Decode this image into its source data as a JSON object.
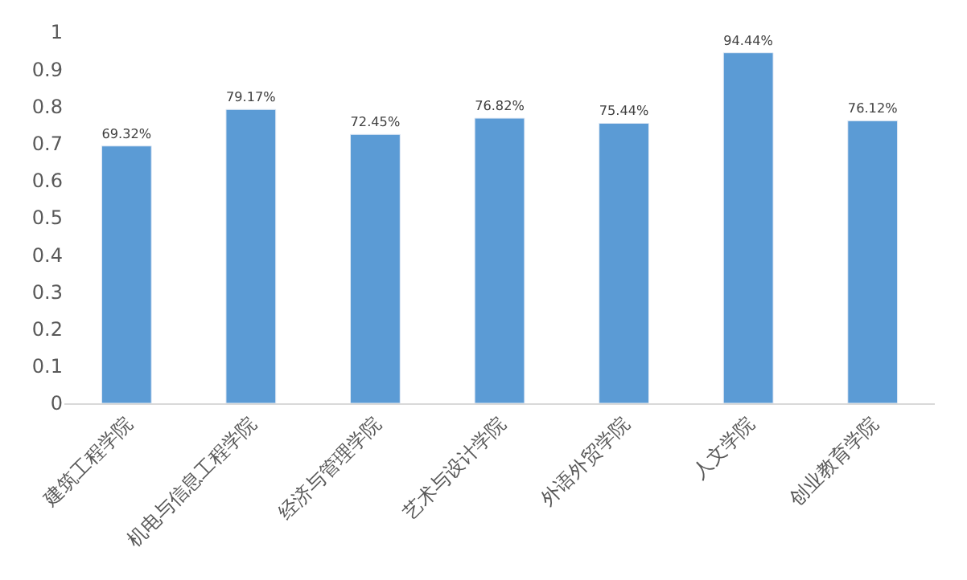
{
  "chart_data": {
    "type": "bar",
    "categories": [
      "建筑工程学院",
      "机电与信息工程学院",
      "经济与管理学院",
      "艺术与设计学院",
      "外语外贸学院",
      "人文学院",
      "创业教育学院"
    ],
    "values": [
      0.6932,
      0.7917,
      0.7245,
      0.7682,
      0.7544,
      0.9444,
      0.7612
    ],
    "value_labels": [
      "69.32%",
      "79.17%",
      "72.45%",
      "76.82%",
      "75.44%",
      "94.44%",
      "76.12%"
    ],
    "color": "#5b9bd5",
    "ylim": [
      0,
      1
    ],
    "yticks": [
      0,
      0.1,
      0.2,
      0.3,
      0.4,
      0.5,
      0.6,
      0.7,
      0.8,
      0.9,
      1
    ],
    "grid": false,
    "legend": false
  }
}
